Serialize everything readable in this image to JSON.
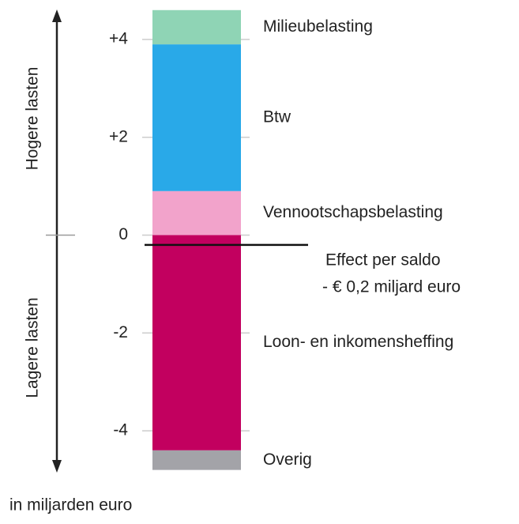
{
  "chart_data": {
    "type": "stacked-bar",
    "categories": [
      null
    ],
    "series": [
      {
        "name": "Vennootschapsbelasting",
        "color": "#f2a3cb",
        "values": [
          0.9
        ]
      },
      {
        "name": "Btw",
        "color": "#29a9e8",
        "values": [
          3.0
        ]
      },
      {
        "name": "Milieubelasting",
        "color": "#8fd4b5",
        "values": [
          0.7
        ]
      },
      {
        "name": "Loon- en inkomensheffing",
        "color": "#c2005f",
        "values": [
          -4.4
        ]
      },
      {
        "name": "Overig",
        "color": "#a3a3a8",
        "values": [
          -0.4
        ]
      }
    ],
    "ylim": [
      -4.8,
      4.8
    ],
    "yticks": [
      {
        "value": 4,
        "label": "+4"
      },
      {
        "value": 2,
        "label": "+2"
      },
      0,
      -2,
      -4
    ],
    "net": {
      "value": -0.2,
      "annotation": [
        "Effect per saldo",
        "- € 0,2 miljard euro"
      ]
    },
    "side_labels": {
      "up": "Hogere lasten",
      "down": "Lagere lasten"
    },
    "unit_label": "in miljarden euro"
  }
}
